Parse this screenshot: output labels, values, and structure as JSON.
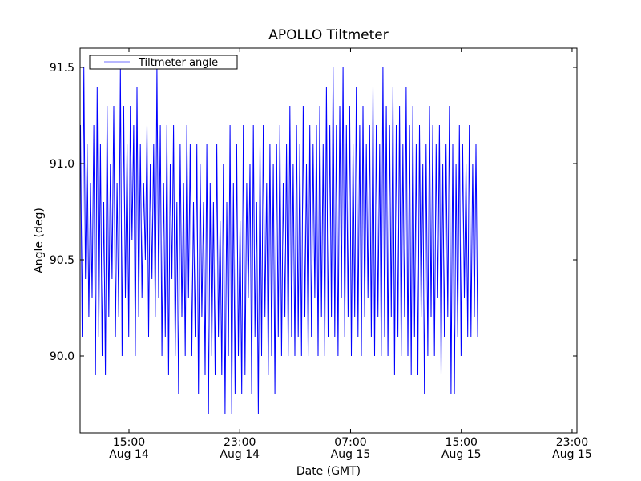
{
  "chart_data": {
    "type": "line",
    "title": "APOLLO Tiltmeter",
    "xlabel": "Date (GMT)",
    "ylabel": "Angle (deg)",
    "ylim": [
      89.6,
      91.6
    ],
    "yticks": [
      {
        "value": 90.0,
        "label": "90.0"
      },
      {
        "value": 90.5,
        "label": "90.5"
      },
      {
        "value": 91.0,
        "label": "91.0"
      },
      {
        "value": 91.5,
        "label": "91.5"
      }
    ],
    "xlim_hours_since_aug14_0000": [
      11.47,
      47.35
    ],
    "xticks": [
      {
        "hours": 15,
        "time": "15:00",
        "date": "Aug 14"
      },
      {
        "hours": 23,
        "time": "23:00",
        "date": "Aug 14"
      },
      {
        "hours": 31,
        "time": "07:00",
        "date": "Aug 15"
      },
      {
        "hours": 39,
        "time": "15:00",
        "date": "Aug 15"
      },
      {
        "hours": 47,
        "time": "23:00",
        "date": "Aug 15"
      }
    ],
    "legend": {
      "placement": "top-left",
      "entries": [
        "Tiltmeter angle"
      ]
    },
    "grid": false,
    "series": [
      {
        "name": "Tiltmeter angle",
        "color": "#0000ff",
        "x_start_hours": 11.5,
        "x_step_hours": 0.12,
        "values": [
          91.2,
          90.1,
          91.5,
          90.4,
          91.1,
          90.2,
          90.9,
          90.3,
          91.2,
          89.9,
          91.4,
          90.1,
          91.1,
          90.0,
          90.8,
          89.9,
          91.3,
          90.2,
          91.0,
          90.4,
          91.3,
          90.1,
          90.9,
          90.2,
          91.5,
          90.0,
          91.3,
          90.3,
          91.1,
          90.1,
          91.3,
          90.6,
          91.2,
          90.0,
          91.4,
          90.2,
          91.1,
          90.3,
          90.9,
          90.5,
          91.2,
          90.1,
          91.0,
          90.4,
          91.1,
          90.2,
          91.5,
          90.3,
          91.2,
          90.0,
          90.9,
          90.1,
          91.2,
          89.9,
          91.0,
          90.4,
          91.2,
          90.0,
          90.8,
          89.8,
          91.1,
          90.2,
          90.9,
          90.0,
          91.2,
          90.3,
          91.1,
          90.0,
          90.8,
          90.1,
          91.1,
          89.8,
          91.0,
          90.2,
          90.8,
          89.9,
          91.1,
          89.7,
          90.9,
          90.0,
          90.8,
          89.9,
          91.1,
          90.1,
          90.7,
          89.9,
          91.0,
          89.7,
          90.8,
          90.0,
          91.2,
          89.7,
          90.9,
          89.8,
          91.1,
          90.0,
          90.7,
          89.8,
          91.2,
          89.9,
          90.9,
          90.3,
          91.0,
          89.8,
          91.2,
          90.1,
          90.8,
          89.7,
          91.1,
          90.0,
          91.2,
          90.2,
          90.9,
          89.9,
          91.1,
          90.0,
          91.0,
          89.8,
          91.1,
          90.1,
          91.2,
          90.0,
          90.9,
          90.2,
          91.1,
          90.0,
          91.3,
          90.1,
          91.0,
          90.0,
          91.2,
          90.1,
          91.1,
          90.0,
          91.3,
          90.2,
          91.0,
          90.0,
          91.2,
          90.1,
          91.1,
          90.3,
          91.2,
          90.0,
          91.3,
          90.2,
          91.1,
          90.0,
          91.4,
          90.1,
          91.2,
          90.2,
          91.5,
          90.1,
          91.2,
          90.0,
          91.3,
          90.3,
          91.5,
          90.1,
          91.2,
          90.2,
          91.3,
          90.0,
          91.1,
          90.2,
          91.4,
          90.1,
          91.2,
          90.0,
          91.3,
          90.2,
          91.1,
          90.3,
          91.2,
          90.1,
          91.4,
          90.0,
          91.2,
          90.2,
          91.1,
          90.0,
          91.5,
          90.1,
          91.3,
          90.0,
          91.2,
          90.2,
          91.4,
          89.9,
          91.2,
          90.1,
          91.3,
          90.0,
          91.1,
          90.2,
          91.4,
          90.0,
          91.2,
          89.9,
          91.3,
          90.1,
          91.1,
          89.9,
          91.2,
          90.2,
          91.0,
          89.8,
          91.1,
          90.0,
          91.3,
          90.2,
          91.2,
          90.0,
          91.1,
          90.3,
          91.2,
          89.9,
          91.0,
          90.1,
          91.1,
          90.2,
          91.3,
          89.8,
          91.1,
          89.8,
          91.0,
          90.1,
          91.2,
          90.0,
          91.1,
          90.3,
          91.0,
          90.1,
          91.2,
          90.1,
          91.0,
          90.2,
          91.1,
          90.1
        ]
      }
    ]
  }
}
